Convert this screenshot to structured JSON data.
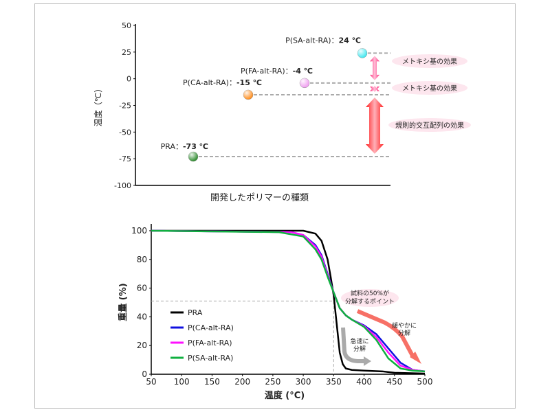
{
  "chart_data": [
    {
      "type": "scatter",
      "ylabel": "温度（℃）",
      "xlabel": "開発したポリマーの種類",
      "ylim": [
        -100,
        50
      ],
      "yticks": [
        50,
        25,
        0,
        -25,
        -50,
        -75,
        -100
      ],
      "grid": false,
      "points": [
        {
          "label": "PRA：",
          "value_text": "-73 ℃",
          "y": -73,
          "color": "#2a8a2a"
        },
        {
          "label": "P(CA-alt-RA)：",
          "value_text": "-15 ℃",
          "y": -15,
          "color": "#ff8c1a"
        },
        {
          "label": "P(FA-alt-RA)：",
          "value_text": "-4 ℃",
          "y": -4,
          "color": "#f09cf0"
        },
        {
          "label": "P(SA-alt-RA)：",
          "value_text": "24 ℃",
          "y": 24,
          "color": "#3fe8f0"
        }
      ],
      "annotations": [
        {
          "text": "メトキシ基の効果",
          "from": -4,
          "to": 24
        },
        {
          "text": "メトキシ基の効果",
          "from": -15,
          "to": -4
        },
        {
          "text": "規則的交互配列の効果",
          "from": -73,
          "to": -15
        }
      ]
    },
    {
      "type": "line",
      "xlabel": "温度 (°C)",
      "ylabel": "重量 (%)",
      "xlim": [
        50,
        500
      ],
      "ylim": [
        0,
        100
      ],
      "xticks": [
        50,
        100,
        150,
        200,
        250,
        300,
        350,
        400,
        450,
        500
      ],
      "yticks": [
        0,
        20,
        40,
        60,
        80,
        100
      ],
      "grid": false,
      "legend": "center-left",
      "reference": {
        "x": 350,
        "y": 51
      },
      "series": [
        {
          "name": "PRA",
          "color": "#000000",
          "x": [
            50,
            300,
            320,
            330,
            340,
            345,
            350,
            355,
            360,
            365,
            370,
            380,
            400,
            430,
            450,
            500
          ],
          "y": [
            100,
            100,
            98,
            93,
            80,
            68,
            55,
            35,
            15,
            7,
            4,
            3,
            2.5,
            2,
            1,
            0.5
          ]
        },
        {
          "name": "P(CA-alt-RA)",
          "color": "#1010e0",
          "x": [
            50,
            280,
            300,
            320,
            330,
            340,
            350,
            360,
            370,
            380,
            400,
            420,
            440,
            460,
            480,
            500
          ],
          "y": [
            100,
            99,
            97,
            90,
            83,
            70,
            57,
            46,
            41,
            38,
            34,
            28,
            18,
            8,
            3,
            2
          ]
        },
        {
          "name": "P(FA-alt-RA)",
          "color": "#ff10ff",
          "x": [
            50,
            280,
            300,
            320,
            330,
            340,
            350,
            360,
            370,
            380,
            400,
            420,
            440,
            460,
            480,
            500
          ],
          "y": [
            100,
            99,
            97,
            89,
            82,
            69,
            57,
            46,
            41,
            38,
            33.5,
            26,
            15,
            6,
            3,
            2
          ]
        },
        {
          "name": "P(SA-alt-RA)",
          "color": "#10b040",
          "x": [
            50,
            260,
            300,
            320,
            330,
            340,
            350,
            360,
            370,
            380,
            400,
            420,
            440,
            460,
            480,
            500
          ],
          "y": [
            100,
            99,
            96,
            87,
            80,
            68,
            57,
            46,
            41,
            38,
            33,
            24,
            11,
            4,
            2.5,
            2
          ]
        }
      ],
      "annotations": [
        {
          "text": "試料の50%が",
          "text2": "分解するポイント"
        },
        {
          "text": "急速に",
          "text2": "分解"
        },
        {
          "text": "緩やかに",
          "text2": "分解"
        }
      ]
    }
  ]
}
